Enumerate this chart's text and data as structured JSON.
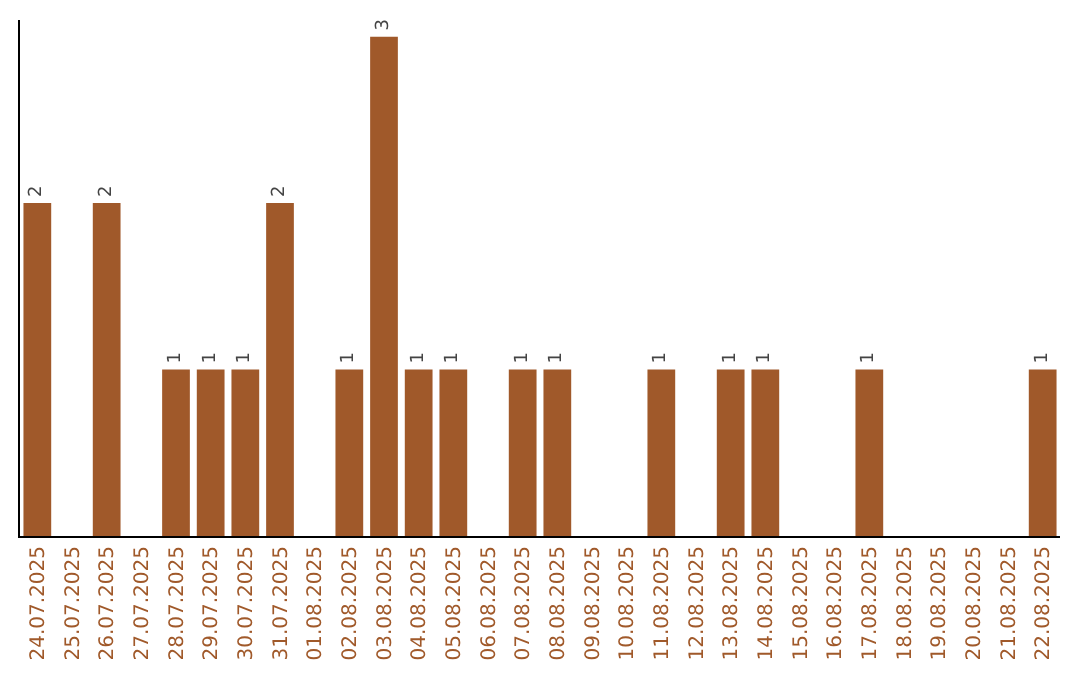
{
  "chart_data": {
    "type": "bar",
    "categories": [
      "24.07.2025",
      "25.07.2025",
      "26.07.2025",
      "27.07.2025",
      "28.07.2025",
      "29.07.2025",
      "30.07.2025",
      "31.07.2025",
      "01.08.2025",
      "02.08.2025",
      "03.08.2025",
      "04.08.2025",
      "05.08.2025",
      "06.08.2025",
      "07.08.2025",
      "08.08.2025",
      "09.08.2025",
      "10.08.2025",
      "11.08.2025",
      "12.08.2025",
      "13.08.2025",
      "14.08.2025",
      "15.08.2025",
      "16.08.2025",
      "17.08.2025",
      "18.08.2025",
      "19.08.2025",
      "20.08.2025",
      "21.08.2025",
      "22.08.2025"
    ],
    "values": [
      2,
      0,
      2,
      0,
      1,
      1,
      1,
      2,
      0,
      1,
      3,
      1,
      1,
      0,
      1,
      1,
      0,
      0,
      1,
      0,
      1,
      1,
      0,
      0,
      1,
      0,
      0,
      0,
      0,
      1
    ],
    "value_labels": [
      "2",
      null,
      "2",
      null,
      "1",
      "1",
      "1",
      "2",
      null,
      "1",
      "3",
      "1",
      "1",
      null,
      "1",
      "1",
      null,
      null,
      "1",
      null,
      "1",
      "1",
      null,
      null,
      "1",
      null,
      null,
      null,
      null,
      "1"
    ],
    "color": "#a0592a",
    "ylim": [
      0,
      3.1
    ],
    "tick_labels": "x",
    "legend": false
  }
}
